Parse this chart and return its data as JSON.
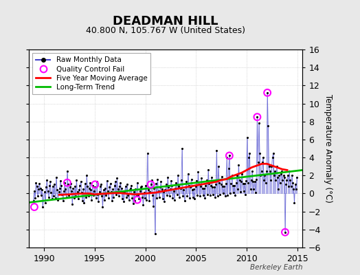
{
  "title": "DEADMAN HILL",
  "subtitle": "40.800 N, 105.767 W (United States)",
  "ylabel_right": "Temperature Anomaly (°C)",
  "watermark": "Berkeley Earth",
  "xlim": [
    1988.5,
    2015.5
  ],
  "ylim": [
    -6,
    16
  ],
  "yticks": [
    -6,
    -4,
    -2,
    0,
    2,
    4,
    6,
    8,
    10,
    12,
    14,
    16
  ],
  "xticks": [
    1990,
    1995,
    2000,
    2005,
    2010,
    2015
  ],
  "bg_color": "#e8e8e8",
  "plot_bg_color": "#ffffff",
  "raw_color": "#4444cc",
  "dot_color": "#000000",
  "ma_color": "#ff0000",
  "trend_color": "#00bb00",
  "qc_color": "#ff00ff",
  "raw_data": [
    [
      1988.958,
      -0.8
    ],
    [
      1989.042,
      0.3
    ],
    [
      1989.125,
      -0.5
    ],
    [
      1989.208,
      1.2
    ],
    [
      1989.292,
      0.8
    ],
    [
      1989.375,
      -0.3
    ],
    [
      1989.458,
      0.5
    ],
    [
      1989.542,
      1.1
    ],
    [
      1989.625,
      0.6
    ],
    [
      1989.708,
      -0.2
    ],
    [
      1989.792,
      0.4
    ],
    [
      1989.875,
      -1.5
    ],
    [
      1990.042,
      0.2
    ],
    [
      1990.125,
      -1.0
    ],
    [
      1990.208,
      0.7
    ],
    [
      1990.292,
      1.5
    ],
    [
      1990.375,
      0.3
    ],
    [
      1990.458,
      -0.4
    ],
    [
      1990.542,
      0.9
    ],
    [
      1990.625,
      1.3
    ],
    [
      1990.708,
      0.1
    ],
    [
      1990.792,
      -0.6
    ],
    [
      1990.875,
      0.8
    ],
    [
      1990.958,
      -0.3
    ],
    [
      1991.042,
      1.0
    ],
    [
      1991.125,
      -0.5
    ],
    [
      1991.208,
      1.8
    ],
    [
      1991.292,
      0.4
    ],
    [
      1991.375,
      -0.7
    ],
    [
      1991.458,
      0.2
    ],
    [
      1991.542,
      0.6
    ],
    [
      1991.625,
      1.4
    ],
    [
      1991.708,
      0.9
    ],
    [
      1991.792,
      -0.1
    ],
    [
      1991.875,
      -0.8
    ],
    [
      1991.958,
      0.3
    ],
    [
      1992.042,
      1.2
    ],
    [
      1992.125,
      0.5
    ],
    [
      1992.208,
      -0.4
    ],
    [
      1992.292,
      2.5
    ],
    [
      1992.375,
      1.0
    ],
    [
      1992.458,
      -0.2
    ],
    [
      1992.542,
      0.7
    ],
    [
      1992.625,
      1.1
    ],
    [
      1992.708,
      0.3
    ],
    [
      1992.792,
      -1.2
    ],
    [
      1992.875,
      0.6
    ],
    [
      1992.958,
      -0.5
    ],
    [
      1993.042,
      0.8
    ],
    [
      1993.125,
      -0.3
    ],
    [
      1993.208,
      1.5
    ],
    [
      1993.292,
      0.2
    ],
    [
      1993.375,
      -0.6
    ],
    [
      1993.458,
      0.4
    ],
    [
      1993.542,
      0.9
    ],
    [
      1993.625,
      1.3
    ],
    [
      1993.708,
      0.1
    ],
    [
      1993.792,
      -0.8
    ],
    [
      1993.875,
      0.5
    ],
    [
      1993.958,
      -1.0
    ],
    [
      1994.042,
      1.1
    ],
    [
      1994.125,
      -0.4
    ],
    [
      1994.208,
      2.0
    ],
    [
      1994.292,
      0.8
    ],
    [
      1994.375,
      -0.3
    ],
    [
      1994.458,
      0.6
    ],
    [
      1994.542,
      1.2
    ],
    [
      1994.625,
      0.4
    ],
    [
      1994.708,
      -0.7
    ],
    [
      1994.792,
      0.9
    ],
    [
      1994.875,
      -0.2
    ],
    [
      1994.958,
      0.3
    ],
    [
      1995.042,
      0.7
    ],
    [
      1995.125,
      -0.5
    ],
    [
      1995.208,
      1.3
    ],
    [
      1995.292,
      -0.1
    ],
    [
      1995.375,
      -0.9
    ],
    [
      1995.458,
      0.2
    ],
    [
      1995.542,
      0.8
    ],
    [
      1995.625,
      1.0
    ],
    [
      1995.708,
      -0.3
    ],
    [
      1995.792,
      -1.5
    ],
    [
      1995.875,
      0.4
    ],
    [
      1995.958,
      -0.7
    ],
    [
      1996.042,
      0.6
    ],
    [
      1996.125,
      -0.2
    ],
    [
      1996.208,
      1.4
    ],
    [
      1996.292,
      0.3
    ],
    [
      1996.375,
      -0.5
    ],
    [
      1996.458,
      0.7
    ],
    [
      1996.542,
      1.1
    ],
    [
      1996.625,
      0.2
    ],
    [
      1996.708,
      -0.8
    ],
    [
      1996.792,
      0.5
    ],
    [
      1996.875,
      -0.4
    ],
    [
      1996.958,
      0.9
    ],
    [
      1997.042,
      1.3
    ],
    [
      1997.125,
      -0.1
    ],
    [
      1997.208,
      1.7
    ],
    [
      1997.292,
      0.5
    ],
    [
      1997.375,
      -0.3
    ],
    [
      1997.458,
      0.8
    ],
    [
      1997.542,
      1.2
    ],
    [
      1997.625,
      0.6
    ],
    [
      1997.708,
      -0.6
    ],
    [
      1997.792,
      0.3
    ],
    [
      1997.875,
      -0.9
    ],
    [
      1997.958,
      0.1
    ],
    [
      1998.042,
      0.8
    ],
    [
      1998.125,
      -0.4
    ],
    [
      1998.208,
      1.0
    ],
    [
      1998.292,
      -0.2
    ],
    [
      1998.375,
      -0.7
    ],
    [
      1998.458,
      0.4
    ],
    [
      1998.542,
      0.6
    ],
    [
      1998.625,
      0.9
    ],
    [
      1998.708,
      -0.5
    ],
    [
      1998.792,
      -1.1
    ],
    [
      1998.875,
      0.2
    ],
    [
      1998.958,
      -0.8
    ],
    [
      1999.042,
      0.5
    ],
    [
      1999.125,
      -0.3
    ],
    [
      1999.208,
      1.2
    ],
    [
      1999.292,
      -0.1
    ],
    [
      1999.375,
      -0.6
    ],
    [
      1999.458,
      0.3
    ],
    [
      1999.542,
      0.7
    ],
    [
      1999.625,
      0.8
    ],
    [
      1999.708,
      -0.4
    ],
    [
      1999.792,
      -1.3
    ],
    [
      1999.875,
      0.1
    ],
    [
      1999.958,
      -0.5
    ],
    [
      2000.042,
      0.9
    ],
    [
      2000.125,
      -0.7
    ],
    [
      2000.208,
      4.5
    ],
    [
      2000.292,
      0.4
    ],
    [
      2000.375,
      -0.8
    ],
    [
      2000.458,
      0.2
    ],
    [
      2000.542,
      1.0
    ],
    [
      2000.625,
      1.5
    ],
    [
      2000.708,
      -0.2
    ],
    [
      2000.792,
      -1.4
    ],
    [
      2000.875,
      0.6
    ],
    [
      2000.958,
      -4.5
    ],
    [
      2001.042,
      1.1
    ],
    [
      2001.125,
      -0.5
    ],
    [
      2001.208,
      1.6
    ],
    [
      2001.292,
      0.3
    ],
    [
      2001.375,
      -0.4
    ],
    [
      2001.458,
      0.7
    ],
    [
      2001.542,
      1.3
    ],
    [
      2001.625,
      0.5
    ],
    [
      2001.708,
      -0.6
    ],
    [
      2001.792,
      0.2
    ],
    [
      2001.875,
      -0.9
    ],
    [
      2001.958,
      0.4
    ],
    [
      2002.042,
      1.0
    ],
    [
      2002.125,
      -0.2
    ],
    [
      2002.208,
      1.8
    ],
    [
      2002.292,
      0.7
    ],
    [
      2002.375,
      -0.3
    ],
    [
      2002.458,
      0.5
    ],
    [
      2002.542,
      1.4
    ],
    [
      2002.625,
      0.9
    ],
    [
      2002.708,
      -0.5
    ],
    [
      2002.792,
      0.3
    ],
    [
      2002.875,
      -0.7
    ],
    [
      2002.958,
      0.6
    ],
    [
      2003.042,
      1.2
    ],
    [
      2003.125,
      -0.1
    ],
    [
      2003.208,
      2.0
    ],
    [
      2003.292,
      0.8
    ],
    [
      2003.375,
      -0.4
    ],
    [
      2003.458,
      0.6
    ],
    [
      2003.542,
      1.5
    ],
    [
      2003.625,
      5.0
    ],
    [
      2003.708,
      -0.3
    ],
    [
      2003.792,
      0.4
    ],
    [
      2003.875,
      -0.8
    ],
    [
      2003.958,
      0.7
    ],
    [
      2004.042,
      1.3
    ],
    [
      2004.125,
      -0.3
    ],
    [
      2004.208,
      2.2
    ],
    [
      2004.292,
      0.9
    ],
    [
      2004.375,
      -0.5
    ],
    [
      2004.458,
      0.7
    ],
    [
      2004.542,
      1.6
    ],
    [
      2004.625,
      0.4
    ],
    [
      2004.708,
      -0.4
    ],
    [
      2004.792,
      0.5
    ],
    [
      2004.875,
      -0.6
    ],
    [
      2004.958,
      0.8
    ],
    [
      2005.042,
      1.4
    ],
    [
      2005.125,
      -0.2
    ],
    [
      2005.208,
      2.4
    ],
    [
      2005.292,
      1.0
    ],
    [
      2005.375,
      -0.3
    ],
    [
      2005.458,
      0.8
    ],
    [
      2005.542,
      1.7
    ],
    [
      2005.625,
      0.6
    ],
    [
      2005.708,
      -0.2
    ],
    [
      2005.792,
      0.6
    ],
    [
      2005.875,
      -0.5
    ],
    [
      2005.958,
      0.9
    ],
    [
      2006.042,
      1.5
    ],
    [
      2006.125,
      -0.1
    ],
    [
      2006.208,
      2.6
    ],
    [
      2006.292,
      1.1
    ],
    [
      2006.375,
      -0.2
    ],
    [
      2006.458,
      0.9
    ],
    [
      2006.542,
      1.8
    ],
    [
      2006.625,
      0.7
    ],
    [
      2006.708,
      -0.1
    ],
    [
      2006.792,
      0.7
    ],
    [
      2006.875,
      -0.4
    ],
    [
      2006.958,
      1.0
    ],
    [
      2007.042,
      4.8
    ],
    [
      2007.125,
      -0.3
    ],
    [
      2007.208,
      3.0
    ],
    [
      2007.292,
      1.2
    ],
    [
      2007.375,
      -0.1
    ],
    [
      2007.458,
      1.0
    ],
    [
      2007.542,
      1.9
    ],
    [
      2007.625,
      0.8
    ],
    [
      2007.708,
      -0.0
    ],
    [
      2007.792,
      0.8
    ],
    [
      2007.875,
      -0.3
    ],
    [
      2007.958,
      1.1
    ],
    [
      2008.042,
      4.0
    ],
    [
      2008.125,
      -0.2
    ],
    [
      2008.208,
      2.8
    ],
    [
      2008.292,
      4.2
    ],
    [
      2008.375,
      -0.0
    ],
    [
      2008.458,
      1.1
    ],
    [
      2008.542,
      2.0
    ],
    [
      2008.625,
      0.9
    ],
    [
      2008.708,
      0.1
    ],
    [
      2008.792,
      0.9
    ],
    [
      2008.875,
      -0.2
    ],
    [
      2008.958,
      1.2
    ],
    [
      2009.042,
      2.0
    ],
    [
      2009.125,
      0.5
    ],
    [
      2009.208,
      3.2
    ],
    [
      2009.292,
      1.5
    ],
    [
      2009.375,
      0.2
    ],
    [
      2009.458,
      1.3
    ],
    [
      2009.542,
      2.2
    ],
    [
      2009.625,
      1.1
    ],
    [
      2009.708,
      0.3
    ],
    [
      2009.792,
      1.1
    ],
    [
      2009.875,
      -0.1
    ],
    [
      2009.958,
      1.4
    ],
    [
      2010.042,
      6.2
    ],
    [
      2010.125,
      1.2
    ],
    [
      2010.208,
      4.0
    ],
    [
      2010.292,
      4.5
    ],
    [
      2010.375,
      0.5
    ],
    [
      2010.458,
      1.5
    ],
    [
      2010.542,
      2.5
    ],
    [
      2010.625,
      1.3
    ],
    [
      2010.708,
      0.5
    ],
    [
      2010.792,
      1.3
    ],
    [
      2010.875,
      0.1
    ],
    [
      2010.958,
      1.6
    ],
    [
      2011.042,
      8.5
    ],
    [
      2011.125,
      3.5
    ],
    [
      2011.208,
      7.8
    ],
    [
      2011.292,
      4.5
    ],
    [
      2011.375,
      2.0
    ],
    [
      2011.458,
      2.5
    ],
    [
      2011.542,
      3.5
    ],
    [
      2011.625,
      4.0
    ],
    [
      2011.708,
      1.5
    ],
    [
      2011.792,
      2.0
    ],
    [
      2011.875,
      1.2
    ],
    [
      2011.958,
      2.5
    ],
    [
      2012.042,
      11.2
    ],
    [
      2012.125,
      7.5
    ],
    [
      2012.208,
      3.0
    ],
    [
      2012.292,
      2.5
    ],
    [
      2012.375,
      1.5
    ],
    [
      2012.458,
      3.0
    ],
    [
      2012.542,
      4.0
    ],
    [
      2012.625,
      4.5
    ],
    [
      2012.708,
      2.0
    ],
    [
      2012.792,
      2.5
    ],
    [
      2012.875,
      1.5
    ],
    [
      2012.958,
      3.0
    ],
    [
      2013.042,
      1.8
    ],
    [
      2013.125,
      0.5
    ],
    [
      2013.208,
      2.0
    ],
    [
      2013.292,
      1.2
    ],
    [
      2013.375,
      2.2
    ],
    [
      2013.458,
      2.5
    ],
    [
      2013.542,
      1.5
    ],
    [
      2013.625,
      2.0
    ],
    [
      2013.708,
      1.8
    ],
    [
      2013.792,
      -4.3
    ],
    [
      2013.875,
      1.0
    ],
    [
      2013.958,
      1.5
    ],
    [
      2014.042,
      2.0
    ],
    [
      2014.125,
      0.8
    ],
    [
      2014.208,
      2.5
    ],
    [
      2014.292,
      1.5
    ],
    [
      2014.375,
      0.8
    ],
    [
      2014.458,
      2.0
    ],
    [
      2014.542,
      1.2
    ],
    [
      2014.625,
      0.5
    ],
    [
      2014.708,
      -1.0
    ],
    [
      2014.792,
      1.0
    ],
    [
      2014.875,
      0.5
    ],
    [
      2014.958,
      1.8
    ]
  ],
  "qc_fail": [
    [
      1989.042,
      -1.5
    ],
    [
      1992.292,
      1.2
    ],
    [
      1995.042,
      1.0
    ],
    [
      1999.208,
      -0.7
    ],
    [
      2000.542,
      1.0
    ],
    [
      2008.292,
      4.2
    ],
    [
      2011.042,
      8.5
    ],
    [
      2012.042,
      11.2
    ],
    [
      2013.792,
      -4.3
    ]
  ],
  "moving_avg": [
    [
      1991.5,
      -0.15
    ],
    [
      1992.0,
      -0.12
    ],
    [
      1992.5,
      -0.1
    ],
    [
      1993.0,
      -0.05
    ],
    [
      1993.5,
      -0.02
    ],
    [
      1994.0,
      0.0
    ],
    [
      1994.5,
      0.0
    ],
    [
      1995.0,
      -0.1
    ],
    [
      1995.5,
      -0.05
    ],
    [
      1996.0,
      -0.02
    ],
    [
      1996.5,
      0.02
    ],
    [
      1997.0,
      0.05
    ],
    [
      1997.5,
      0.05
    ],
    [
      1998.0,
      0.0
    ],
    [
      1998.5,
      -0.05
    ],
    [
      1999.0,
      -0.1
    ],
    [
      1999.5,
      -0.05
    ],
    [
      2000.0,
      0.0
    ],
    [
      2000.5,
      0.05
    ],
    [
      2001.0,
      0.1
    ],
    [
      2001.5,
      0.2
    ],
    [
      2002.0,
      0.3
    ],
    [
      2002.5,
      0.4
    ],
    [
      2003.0,
      0.5
    ],
    [
      2003.5,
      0.6
    ],
    [
      2004.0,
      0.7
    ],
    [
      2004.5,
      0.8
    ],
    [
      2005.0,
      0.9
    ],
    [
      2005.5,
      1.0
    ],
    [
      2006.0,
      1.1
    ],
    [
      2006.5,
      1.2
    ],
    [
      2007.0,
      1.3
    ],
    [
      2007.5,
      1.5
    ],
    [
      2008.0,
      1.6
    ],
    [
      2008.5,
      1.9
    ],
    [
      2009.0,
      2.1
    ],
    [
      2009.5,
      2.3
    ],
    [
      2010.0,
      2.6
    ],
    [
      2010.5,
      2.9
    ],
    [
      2011.0,
      3.1
    ],
    [
      2011.5,
      3.3
    ],
    [
      2012.0,
      3.3
    ],
    [
      2012.5,
      3.1
    ],
    [
      2013.0,
      2.9
    ],
    [
      2013.5,
      2.7
    ],
    [
      2014.0,
      2.6
    ]
  ],
  "trend_line": [
    [
      1988.5,
      -1.0
    ],
    [
      2015.5,
      2.6
    ]
  ]
}
